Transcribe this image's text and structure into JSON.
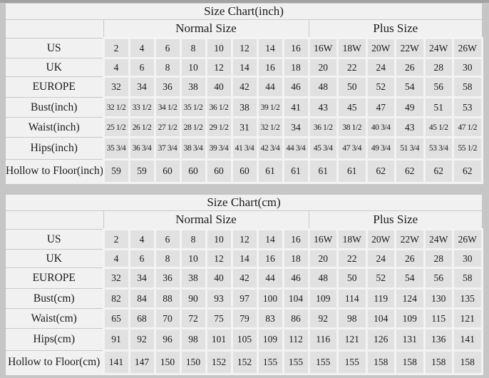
{
  "colors": {
    "page_background": "#c6c6c6",
    "panel_background": "#f1f1f1",
    "data_cell_background": "#e1e1e1",
    "grid_line": "#c9c9c9",
    "text": "#1a1a1a"
  },
  "tables": [
    {
      "title": "Size Chart(inch)",
      "groups": [
        {
          "label": "Normal Size",
          "columns": 8
        },
        {
          "label": "Plus Size",
          "columns": 6
        }
      ],
      "rows": [
        {
          "label": "US",
          "values": [
            "2",
            "4",
            "6",
            "8",
            "10",
            "12",
            "14",
            "16",
            "16W",
            "18W",
            "20W",
            "22W",
            "24W",
            "26W"
          ]
        },
        {
          "label": "UK",
          "values": [
            "4",
            "6",
            "8",
            "10",
            "12",
            "14",
            "16",
            "18",
            "20",
            "22",
            "24",
            "26",
            "28",
            "30"
          ]
        },
        {
          "label": "EUROPE",
          "values": [
            "32",
            "34",
            "36",
            "38",
            "40",
            "42",
            "44",
            "46",
            "48",
            "50",
            "52",
            "54",
            "56",
            "58"
          ]
        },
        {
          "label": "Bust(inch)",
          "values": [
            "32 1/2",
            "33 1/2",
            "34 1/2",
            "35 1/2",
            "36 1/2",
            "38",
            "39 1/2",
            "41",
            "43",
            "45",
            "47",
            "49",
            "51",
            "53"
          ]
        },
        {
          "label": "Waist(inch)",
          "values": [
            "25 1/2",
            "26 1/2",
            "27 1/2",
            "28 1/2",
            "29 1/2",
            "31",
            "32 1/2",
            "34",
            "36 1/2",
            "38 1/2",
            "40 3/4",
            "43",
            "45 1/2",
            "47 1/2"
          ]
        },
        {
          "label": "Hips(inch)",
          "values": [
            "35 3/4",
            "36 3/4",
            "37 3/4",
            "38 3/4",
            "39 3/4",
            "41 3/4",
            "42 3/4",
            "44 3/4",
            "45 3/4",
            "47 3/4",
            "49 3/4",
            "51 3/4",
            "53 3/4",
            "55 1/2"
          ]
        },
        {
          "label": "Hollow to Floor(inch)",
          "values": [
            "59",
            "59",
            "60",
            "60",
            "60",
            "60",
            "61",
            "61",
            "61",
            "61",
            "62",
            "62",
            "62",
            "62"
          ]
        }
      ]
    },
    {
      "title": "Size Chart(cm)",
      "groups": [
        {
          "label": "Normal Size",
          "columns": 8
        },
        {
          "label": "Plus Size",
          "columns": 6
        }
      ],
      "rows": [
        {
          "label": "US",
          "values": [
            "2",
            "4",
            "6",
            "8",
            "10",
            "12",
            "14",
            "16",
            "16W",
            "18W",
            "20W",
            "22W",
            "24W",
            "26W"
          ]
        },
        {
          "label": "UK",
          "values": [
            "4",
            "6",
            "8",
            "10",
            "12",
            "14",
            "16",
            "18",
            "20",
            "22",
            "24",
            "26",
            "28",
            "30"
          ]
        },
        {
          "label": "EUROPE",
          "values": [
            "32",
            "34",
            "36",
            "38",
            "40",
            "42",
            "44",
            "46",
            "48",
            "50",
            "52",
            "54",
            "56",
            "58"
          ]
        },
        {
          "label": "Bust(cm)",
          "values": [
            "82",
            "84",
            "88",
            "90",
            "93",
            "97",
            "100",
            "104",
            "109",
            "114",
            "119",
            "124",
            "130",
            "135"
          ]
        },
        {
          "label": "Waist(cm)",
          "values": [
            "65",
            "68",
            "70",
            "72",
            "75",
            "79",
            "83",
            "86",
            "92",
            "98",
            "104",
            "109",
            "115",
            "121"
          ]
        },
        {
          "label": "Hips(cm)",
          "values": [
            "91",
            "92",
            "96",
            "98",
            "101",
            "105",
            "109",
            "112",
            "116",
            "121",
            "126",
            "131",
            "136",
            "141"
          ]
        },
        {
          "label": "Hollow to Floor(cm)",
          "values": [
            "141",
            "147",
            "150",
            "150",
            "152",
            "152",
            "155",
            "155",
            "155",
            "155",
            "158",
            "158",
            "158",
            "158"
          ]
        }
      ]
    }
  ]
}
